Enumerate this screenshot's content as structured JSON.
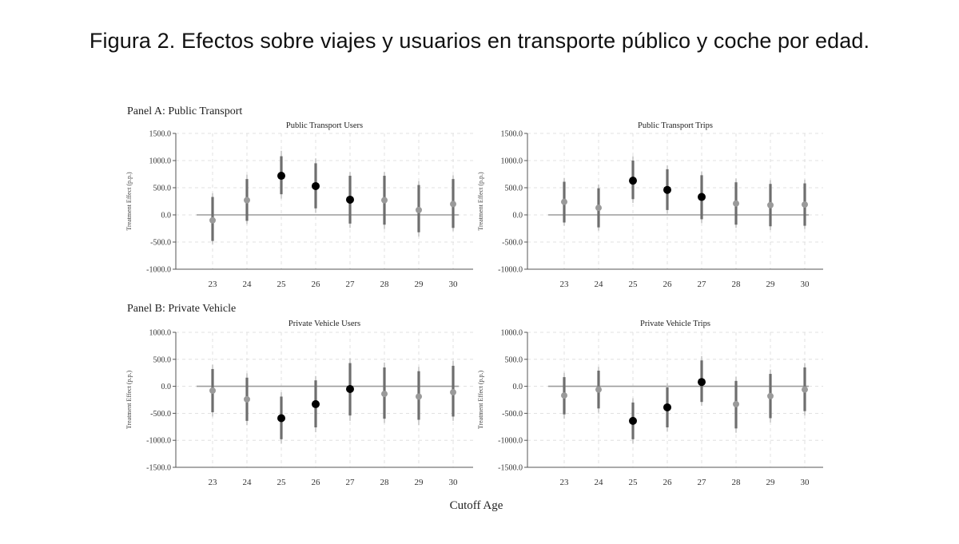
{
  "figure_title": "Figura 2. Efectos sobre viajes y usuarios en transporte público y coche por edad.",
  "panels": {
    "a_label": "Panel A: Public Transport",
    "b_label": "Panel B: Private Vehicle"
  },
  "shared_xlabel": "Cutoff Age",
  "colors": {
    "significant": "#000000",
    "nonsignificant": "#9a9a9a",
    "ci_outer": "#bdbdbd",
    "ci_inner": "#6e6e6e",
    "zero_line": "#9c9c9c",
    "grid": "#d9d9d9"
  },
  "chart_data": [
    {
      "type": "scatter",
      "subtype": "coefficient plot with confidence intervals",
      "title": "Public Transport Users",
      "ylabel": "Treatment Effect (p.p.)",
      "xlabel": "",
      "x": [
        23,
        24,
        25,
        26,
        27,
        28,
        29,
        30
      ],
      "xticklabels": [
        "23",
        "24",
        "25",
        "26",
        "27",
        "28",
        "29",
        "30"
      ],
      "values": [
        -100,
        270,
        720,
        530,
        280,
        270,
        90,
        200
      ],
      "ci_inner": [
        [
          -480,
          330
        ],
        [
          -110,
          660
        ],
        [
          380,
          1080
        ],
        [
          120,
          950
        ],
        [
          -160,
          720
        ],
        [
          -180,
          720
        ],
        [
          -320,
          550
        ],
        [
          -240,
          660
        ]
      ],
      "ci_outer": [
        [
          -540,
          400
        ],
        [
          -170,
          740
        ],
        [
          300,
          1180
        ],
        [
          40,
          1040
        ],
        [
          -240,
          790
        ],
        [
          -260,
          790
        ],
        [
          -400,
          620
        ],
        [
          -300,
          730
        ]
      ],
      "significant": [
        false,
        false,
        true,
        true,
        true,
        false,
        false,
        false
      ],
      "ylim": [
        -1000,
        1500
      ],
      "yticks": [
        -1000,
        -500,
        0,
        500,
        1000,
        1500
      ],
      "yticklabels": [
        "-1000.0",
        "-500.0",
        "0.0",
        "500.0",
        "1000.0",
        "1500.0"
      ],
      "grid": true
    },
    {
      "type": "scatter",
      "subtype": "coefficient plot with confidence intervals",
      "title": "Public Transport Trips",
      "ylabel": "Treatment Effect (p.p.)",
      "xlabel": "",
      "x": [
        23,
        24,
        25,
        26,
        27,
        28,
        29,
        30
      ],
      "xticklabels": [
        "23",
        "24",
        "25",
        "26",
        "27",
        "28",
        "29",
        "30"
      ],
      "values": [
        240,
        130,
        630,
        460,
        330,
        210,
        180,
        190
      ],
      "ci_inner": [
        [
          -140,
          610
        ],
        [
          -230,
          490
        ],
        [
          290,
          1000
        ],
        [
          90,
          840
        ],
        [
          -80,
          730
        ],
        [
          -180,
          600
        ],
        [
          -210,
          570
        ],
        [
          -200,
          580
        ]
      ],
      "ci_outer": [
        [
          -200,
          680
        ],
        [
          -290,
          560
        ],
        [
          220,
          1080
        ],
        [
          20,
          910
        ],
        [
          -150,
          800
        ],
        [
          -240,
          670
        ],
        [
          -280,
          640
        ],
        [
          -260,
          650
        ]
      ],
      "significant": [
        false,
        false,
        true,
        true,
        true,
        false,
        false,
        false
      ],
      "ylim": [
        -1000,
        1500
      ],
      "yticks": [
        -1000,
        -500,
        0,
        500,
        1000,
        1500
      ],
      "yticklabels": [
        "-1000.0",
        "-500.0",
        "0.0",
        "500.0",
        "1000.0",
        "1500.0"
      ],
      "grid": true
    },
    {
      "type": "scatter",
      "subtype": "coefficient plot with confidence intervals",
      "title": "Private Vehicle Users",
      "ylabel": "Treatment Effect (p.p.)",
      "xlabel": "",
      "x": [
        23,
        24,
        25,
        26,
        27,
        28,
        29,
        30
      ],
      "xticklabels": [
        "23",
        "24",
        "25",
        "26",
        "27",
        "28",
        "29",
        "30"
      ],
      "values": [
        -80,
        -240,
        -590,
        -330,
        -50,
        -140,
        -190,
        -110
      ],
      "ci_inner": [
        [
          -480,
          320
        ],
        [
          -640,
          160
        ],
        [
          -980,
          -190
        ],
        [
          -760,
          110
        ],
        [
          -540,
          430
        ],
        [
          -600,
          350
        ],
        [
          -620,
          280
        ],
        [
          -560,
          380
        ]
      ],
      "ci_outer": [
        [
          -560,
          400
        ],
        [
          -720,
          240
        ],
        [
          -1060,
          -110
        ],
        [
          -850,
          190
        ],
        [
          -640,
          520
        ],
        [
          -680,
          440
        ],
        [
          -720,
          360
        ],
        [
          -640,
          470
        ]
      ],
      "significant": [
        false,
        false,
        true,
        true,
        true,
        false,
        false,
        false
      ],
      "ylim": [
        -1500,
        1000
      ],
      "yticks": [
        -1500,
        -1000,
        -500,
        0,
        500,
        1000
      ],
      "yticklabels": [
        "-1500.0",
        "-1000.0",
        "-500.0",
        "0.0",
        "500.0",
        "1000.0"
      ],
      "grid": true
    },
    {
      "type": "scatter",
      "subtype": "coefficient plot with confidence intervals",
      "title": "Private Vehicle Trips",
      "ylabel": "Treatment Effect (p.p.)",
      "xlabel": "",
      "x": [
        23,
        24,
        25,
        26,
        27,
        28,
        29,
        30
      ],
      "xticklabels": [
        "23",
        "24",
        "25",
        "26",
        "27",
        "28",
        "29",
        "30"
      ],
      "values": [
        -170,
        -60,
        -640,
        -390,
        80,
        -330,
        -180,
        -60
      ],
      "ci_inner": [
        [
          -520,
          170
        ],
        [
          -410,
          290
        ],
        [
          -980,
          -300
        ],
        [
          -760,
          -20
        ],
        [
          -290,
          480
        ],
        [
          -780,
          100
        ],
        [
          -590,
          230
        ],
        [
          -460,
          350
        ]
      ],
      "ci_outer": [
        [
          -600,
          250
        ],
        [
          -490,
          360
        ],
        [
          -1060,
          -220
        ],
        [
          -840,
          60
        ],
        [
          -360,
          560
        ],
        [
          -860,
          180
        ],
        [
          -670,
          310
        ],
        [
          -540,
          430
        ]
      ],
      "significant": [
        false,
        false,
        true,
        true,
        true,
        false,
        false,
        false
      ],
      "ylim": [
        -1500,
        1000
      ],
      "yticks": [
        -1500,
        -1000,
        -500,
        0,
        500,
        1000
      ],
      "yticklabels": [
        "-1500.0",
        "-1000.0",
        "-500.0",
        "0.0",
        "500.0",
        "1000.0"
      ],
      "grid": true
    }
  ]
}
